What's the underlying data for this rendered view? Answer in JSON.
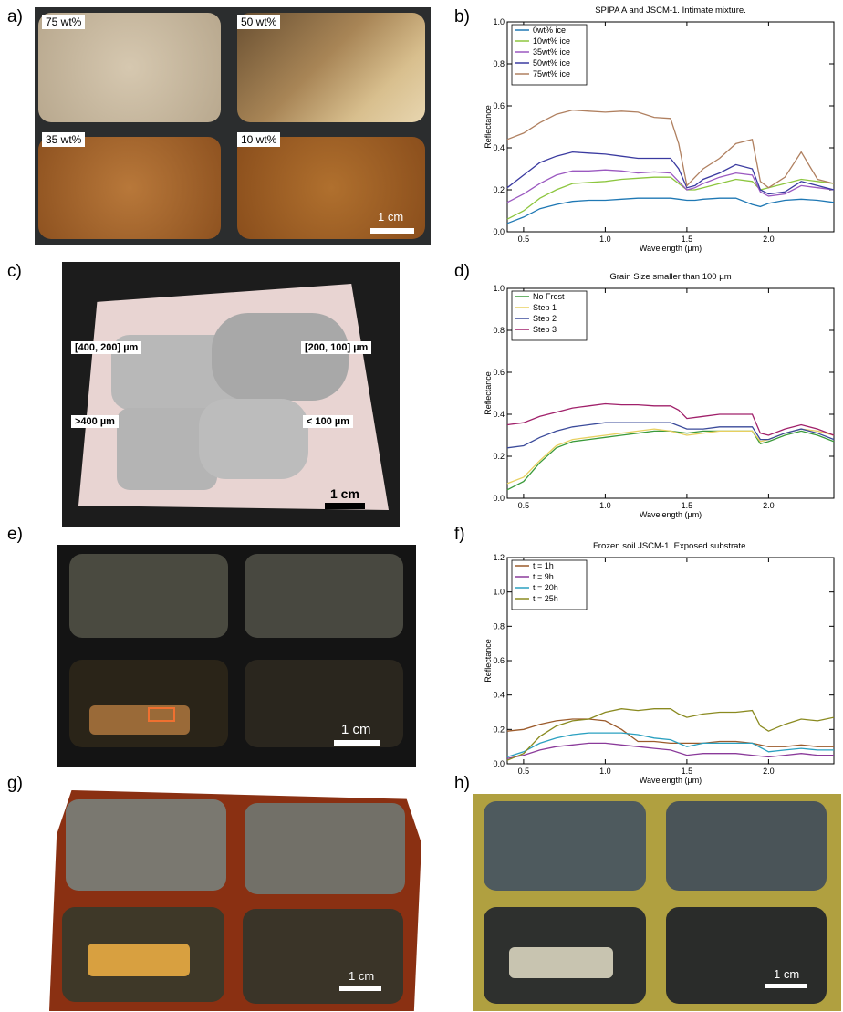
{
  "panels": {
    "a": {
      "letter": "a)",
      "labels": [
        "75 wt%",
        "50 wt%",
        "35 wt%",
        "10 wt%"
      ],
      "scale": "1 cm"
    },
    "c": {
      "letter": "c)",
      "labels": [
        "[400, 200]  µm",
        "[200, 100]  µm",
        ">400 µm",
        "< 100 µm"
      ],
      "scale": "1 cm"
    },
    "e": {
      "letter": "e)",
      "scale": "1 cm"
    },
    "g": {
      "letter": "g)",
      "scale": "1 cm"
    },
    "h": {
      "letter": "h)",
      "scale": "1 cm"
    },
    "b": {
      "letter": "b)"
    },
    "d": {
      "letter": "d)"
    },
    "f": {
      "letter": "f)"
    }
  },
  "chart_data": [
    {
      "id": "b",
      "type": "line",
      "title": "SPIPA A and JSCM-1. Intimate mixture.",
      "xlabel": "Wavelength (µm)",
      "ylabel": "Reflectance",
      "xlim": [
        0.4,
        2.4
      ],
      "ylim": [
        0,
        1.0
      ],
      "xticks": [
        0.5,
        1.0,
        1.5,
        2.0
      ],
      "yticks": [
        0.0,
        0.2,
        0.4,
        0.6,
        0.8,
        1.0
      ],
      "legend": "top-left",
      "series": [
        {
          "name": "0wt% ice",
          "color": "#1f78b4",
          "x": [
            0.4,
            0.5,
            0.6,
            0.7,
            0.8,
            0.9,
            1.0,
            1.1,
            1.2,
            1.3,
            1.4,
            1.45,
            1.5,
            1.55,
            1.6,
            1.7,
            1.8,
            1.9,
            1.95,
            2.0,
            2.1,
            2.2,
            2.3,
            2.4
          ],
          "y": [
            0.04,
            0.07,
            0.11,
            0.13,
            0.145,
            0.15,
            0.15,
            0.155,
            0.16,
            0.16,
            0.16,
            0.155,
            0.15,
            0.15,
            0.155,
            0.16,
            0.16,
            0.13,
            0.12,
            0.135,
            0.15,
            0.155,
            0.15,
            0.14
          ]
        },
        {
          "name": "10wt% ice",
          "color": "#8dc63f",
          "x": [
            0.4,
            0.5,
            0.6,
            0.7,
            0.8,
            0.9,
            1.0,
            1.1,
            1.2,
            1.3,
            1.4,
            1.45,
            1.5,
            1.55,
            1.6,
            1.7,
            1.8,
            1.9,
            1.95,
            2.0,
            2.1,
            2.2,
            2.3,
            2.4
          ],
          "y": [
            0.06,
            0.1,
            0.16,
            0.2,
            0.23,
            0.235,
            0.24,
            0.25,
            0.255,
            0.26,
            0.26,
            0.23,
            0.2,
            0.2,
            0.21,
            0.23,
            0.25,
            0.24,
            0.2,
            0.21,
            0.23,
            0.25,
            0.24,
            0.23
          ]
        },
        {
          "name": "35wt% ice",
          "color": "#9b59c0",
          "x": [
            0.4,
            0.5,
            0.6,
            0.7,
            0.8,
            0.9,
            1.0,
            1.1,
            1.2,
            1.3,
            1.4,
            1.45,
            1.5,
            1.55,
            1.6,
            1.7,
            1.8,
            1.9,
            1.95,
            2.0,
            2.1,
            2.2,
            2.3,
            2.4
          ],
          "y": [
            0.14,
            0.18,
            0.23,
            0.27,
            0.29,
            0.29,
            0.295,
            0.29,
            0.28,
            0.285,
            0.28,
            0.24,
            0.2,
            0.21,
            0.23,
            0.26,
            0.28,
            0.27,
            0.19,
            0.17,
            0.18,
            0.22,
            0.21,
            0.2
          ]
        },
        {
          "name": "50wt% ice",
          "color": "#3a3aa0",
          "x": [
            0.4,
            0.5,
            0.6,
            0.7,
            0.8,
            0.9,
            1.0,
            1.1,
            1.2,
            1.3,
            1.4,
            1.45,
            1.5,
            1.55,
            1.6,
            1.7,
            1.8,
            1.9,
            1.95,
            2.0,
            2.1,
            2.2,
            2.3,
            2.4
          ],
          "y": [
            0.21,
            0.27,
            0.33,
            0.36,
            0.38,
            0.375,
            0.37,
            0.36,
            0.35,
            0.35,
            0.35,
            0.3,
            0.21,
            0.22,
            0.25,
            0.28,
            0.32,
            0.3,
            0.2,
            0.18,
            0.19,
            0.24,
            0.22,
            0.2
          ]
        },
        {
          "name": "75wt% ice",
          "color": "#b08060",
          "x": [
            0.4,
            0.5,
            0.6,
            0.7,
            0.8,
            0.9,
            1.0,
            1.1,
            1.2,
            1.3,
            1.4,
            1.45,
            1.5,
            1.55,
            1.6,
            1.7,
            1.8,
            1.9,
            1.95,
            2.0,
            2.1,
            2.2,
            2.3,
            2.4
          ],
          "y": [
            0.44,
            0.47,
            0.52,
            0.56,
            0.58,
            0.575,
            0.57,
            0.575,
            0.57,
            0.545,
            0.54,
            0.42,
            0.22,
            0.26,
            0.3,
            0.35,
            0.42,
            0.44,
            0.24,
            0.21,
            0.26,
            0.38,
            0.25,
            0.23
          ]
        }
      ]
    },
    {
      "id": "d",
      "type": "line",
      "title": "Grain Size smaller than 100 µm",
      "xlabel": "Wavelength (µm)",
      "ylabel": "Reflectance",
      "xlim": [
        0.4,
        2.4
      ],
      "ylim": [
        0,
        1.0
      ],
      "xticks": [
        0.5,
        1.0,
        1.5,
        2.0
      ],
      "yticks": [
        0.0,
        0.2,
        0.4,
        0.6,
        0.8,
        1.0
      ],
      "legend": "top-left",
      "series": [
        {
          "name": "No Frost",
          "color": "#3a9a3a",
          "x": [
            0.4,
            0.5,
            0.6,
            0.7,
            0.8,
            0.9,
            1.0,
            1.1,
            1.2,
            1.3,
            1.4,
            1.5,
            1.6,
            1.7,
            1.8,
            1.9,
            1.95,
            2.0,
            2.1,
            2.2,
            2.3,
            2.4
          ],
          "y": [
            0.04,
            0.08,
            0.17,
            0.24,
            0.27,
            0.28,
            0.29,
            0.3,
            0.31,
            0.32,
            0.32,
            0.31,
            0.32,
            0.32,
            0.32,
            0.32,
            0.26,
            0.27,
            0.3,
            0.32,
            0.3,
            0.27
          ]
        },
        {
          "name": "Step 1",
          "color": "#e8d060",
          "x": [
            0.4,
            0.5,
            0.6,
            0.7,
            0.8,
            0.9,
            1.0,
            1.1,
            1.2,
            1.3,
            1.4,
            1.5,
            1.6,
            1.7,
            1.8,
            1.9,
            1.95,
            2.0,
            2.1,
            2.2,
            2.3,
            2.4
          ],
          "y": [
            0.07,
            0.1,
            0.18,
            0.25,
            0.28,
            0.29,
            0.3,
            0.31,
            0.32,
            0.33,
            0.32,
            0.3,
            0.31,
            0.32,
            0.32,
            0.32,
            0.27,
            0.28,
            0.31,
            0.33,
            0.32,
            0.3
          ]
        },
        {
          "name": "Step 2",
          "color": "#3a4a9a",
          "x": [
            0.4,
            0.5,
            0.6,
            0.7,
            0.8,
            0.9,
            1.0,
            1.1,
            1.2,
            1.3,
            1.4,
            1.5,
            1.6,
            1.7,
            1.8,
            1.9,
            1.95,
            2.0,
            2.1,
            2.2,
            2.3,
            2.4
          ],
          "y": [
            0.24,
            0.25,
            0.29,
            0.32,
            0.34,
            0.35,
            0.36,
            0.36,
            0.36,
            0.36,
            0.36,
            0.33,
            0.33,
            0.34,
            0.34,
            0.34,
            0.28,
            0.28,
            0.31,
            0.33,
            0.31,
            0.28
          ]
        },
        {
          "name": "Step 3",
          "color": "#a0206a",
          "x": [
            0.4,
            0.5,
            0.6,
            0.7,
            0.8,
            0.9,
            1.0,
            1.1,
            1.2,
            1.3,
            1.4,
            1.45,
            1.5,
            1.6,
            1.7,
            1.8,
            1.9,
            1.95,
            2.0,
            2.1,
            2.2,
            2.3,
            2.4
          ],
          "y": [
            0.35,
            0.36,
            0.39,
            0.41,
            0.43,
            0.44,
            0.45,
            0.445,
            0.445,
            0.44,
            0.44,
            0.42,
            0.38,
            0.39,
            0.4,
            0.4,
            0.4,
            0.31,
            0.3,
            0.33,
            0.35,
            0.33,
            0.3
          ]
        }
      ]
    },
    {
      "id": "f",
      "type": "line",
      "title": "Frozen soil JSCM-1. Exposed substrate.",
      "xlabel": "Wavelength (µm)",
      "ylabel": "Reflectance",
      "xlim": [
        0.4,
        2.4
      ],
      "ylim": [
        0,
        1.2
      ],
      "xticks": [
        0.5,
        1.0,
        1.5,
        2.0
      ],
      "yticks": [
        0.0,
        0.2,
        0.4,
        0.6,
        0.8,
        1.0,
        1.2
      ],
      "legend": "top-left",
      "series": [
        {
          "name": "t = 1h",
          "color": "#9b5a2a",
          "x": [
            0.4,
            0.5,
            0.6,
            0.7,
            0.8,
            0.9,
            1.0,
            1.1,
            1.2,
            1.3,
            1.4,
            1.5,
            1.6,
            1.7,
            1.8,
            1.9,
            2.0,
            2.1,
            2.2,
            2.3,
            2.4
          ],
          "y": [
            0.19,
            0.2,
            0.23,
            0.25,
            0.26,
            0.26,
            0.25,
            0.2,
            0.13,
            0.13,
            0.12,
            0.12,
            0.12,
            0.13,
            0.13,
            0.12,
            0.1,
            0.1,
            0.11,
            0.1,
            0.1
          ]
        },
        {
          "name": "t = 9h",
          "color": "#8a3a9a",
          "x": [
            0.4,
            0.5,
            0.6,
            0.7,
            0.8,
            0.9,
            1.0,
            1.1,
            1.2,
            1.3,
            1.4,
            1.5,
            1.6,
            1.7,
            1.8,
            1.9,
            2.0,
            2.1,
            2.2,
            2.3,
            2.4
          ],
          "y": [
            0.03,
            0.05,
            0.08,
            0.1,
            0.11,
            0.12,
            0.12,
            0.11,
            0.1,
            0.09,
            0.08,
            0.05,
            0.06,
            0.06,
            0.06,
            0.05,
            0.04,
            0.05,
            0.06,
            0.05,
            0.05
          ]
        },
        {
          "name": "t = 20h",
          "color": "#2aa0c0",
          "x": [
            0.4,
            0.5,
            0.6,
            0.7,
            0.8,
            0.9,
            1.0,
            1.1,
            1.2,
            1.3,
            1.4,
            1.5,
            1.6,
            1.7,
            1.8,
            1.9,
            2.0,
            2.1,
            2.2,
            2.3,
            2.4
          ],
          "y": [
            0.04,
            0.07,
            0.12,
            0.15,
            0.17,
            0.18,
            0.18,
            0.18,
            0.17,
            0.15,
            0.14,
            0.1,
            0.12,
            0.12,
            0.12,
            0.12,
            0.07,
            0.08,
            0.09,
            0.08,
            0.08
          ]
        },
        {
          "name": "t = 25h",
          "color": "#8a8a20",
          "x": [
            0.4,
            0.5,
            0.6,
            0.7,
            0.8,
            0.9,
            1.0,
            1.1,
            1.2,
            1.3,
            1.4,
            1.45,
            1.5,
            1.6,
            1.7,
            1.8,
            1.9,
            1.95,
            2.0,
            2.1,
            2.2,
            2.3,
            2.4
          ],
          "y": [
            0.02,
            0.06,
            0.16,
            0.22,
            0.25,
            0.26,
            0.3,
            0.32,
            0.31,
            0.32,
            0.32,
            0.29,
            0.27,
            0.29,
            0.3,
            0.3,
            0.31,
            0.22,
            0.19,
            0.23,
            0.26,
            0.25,
            0.27
          ]
        }
      ]
    }
  ]
}
